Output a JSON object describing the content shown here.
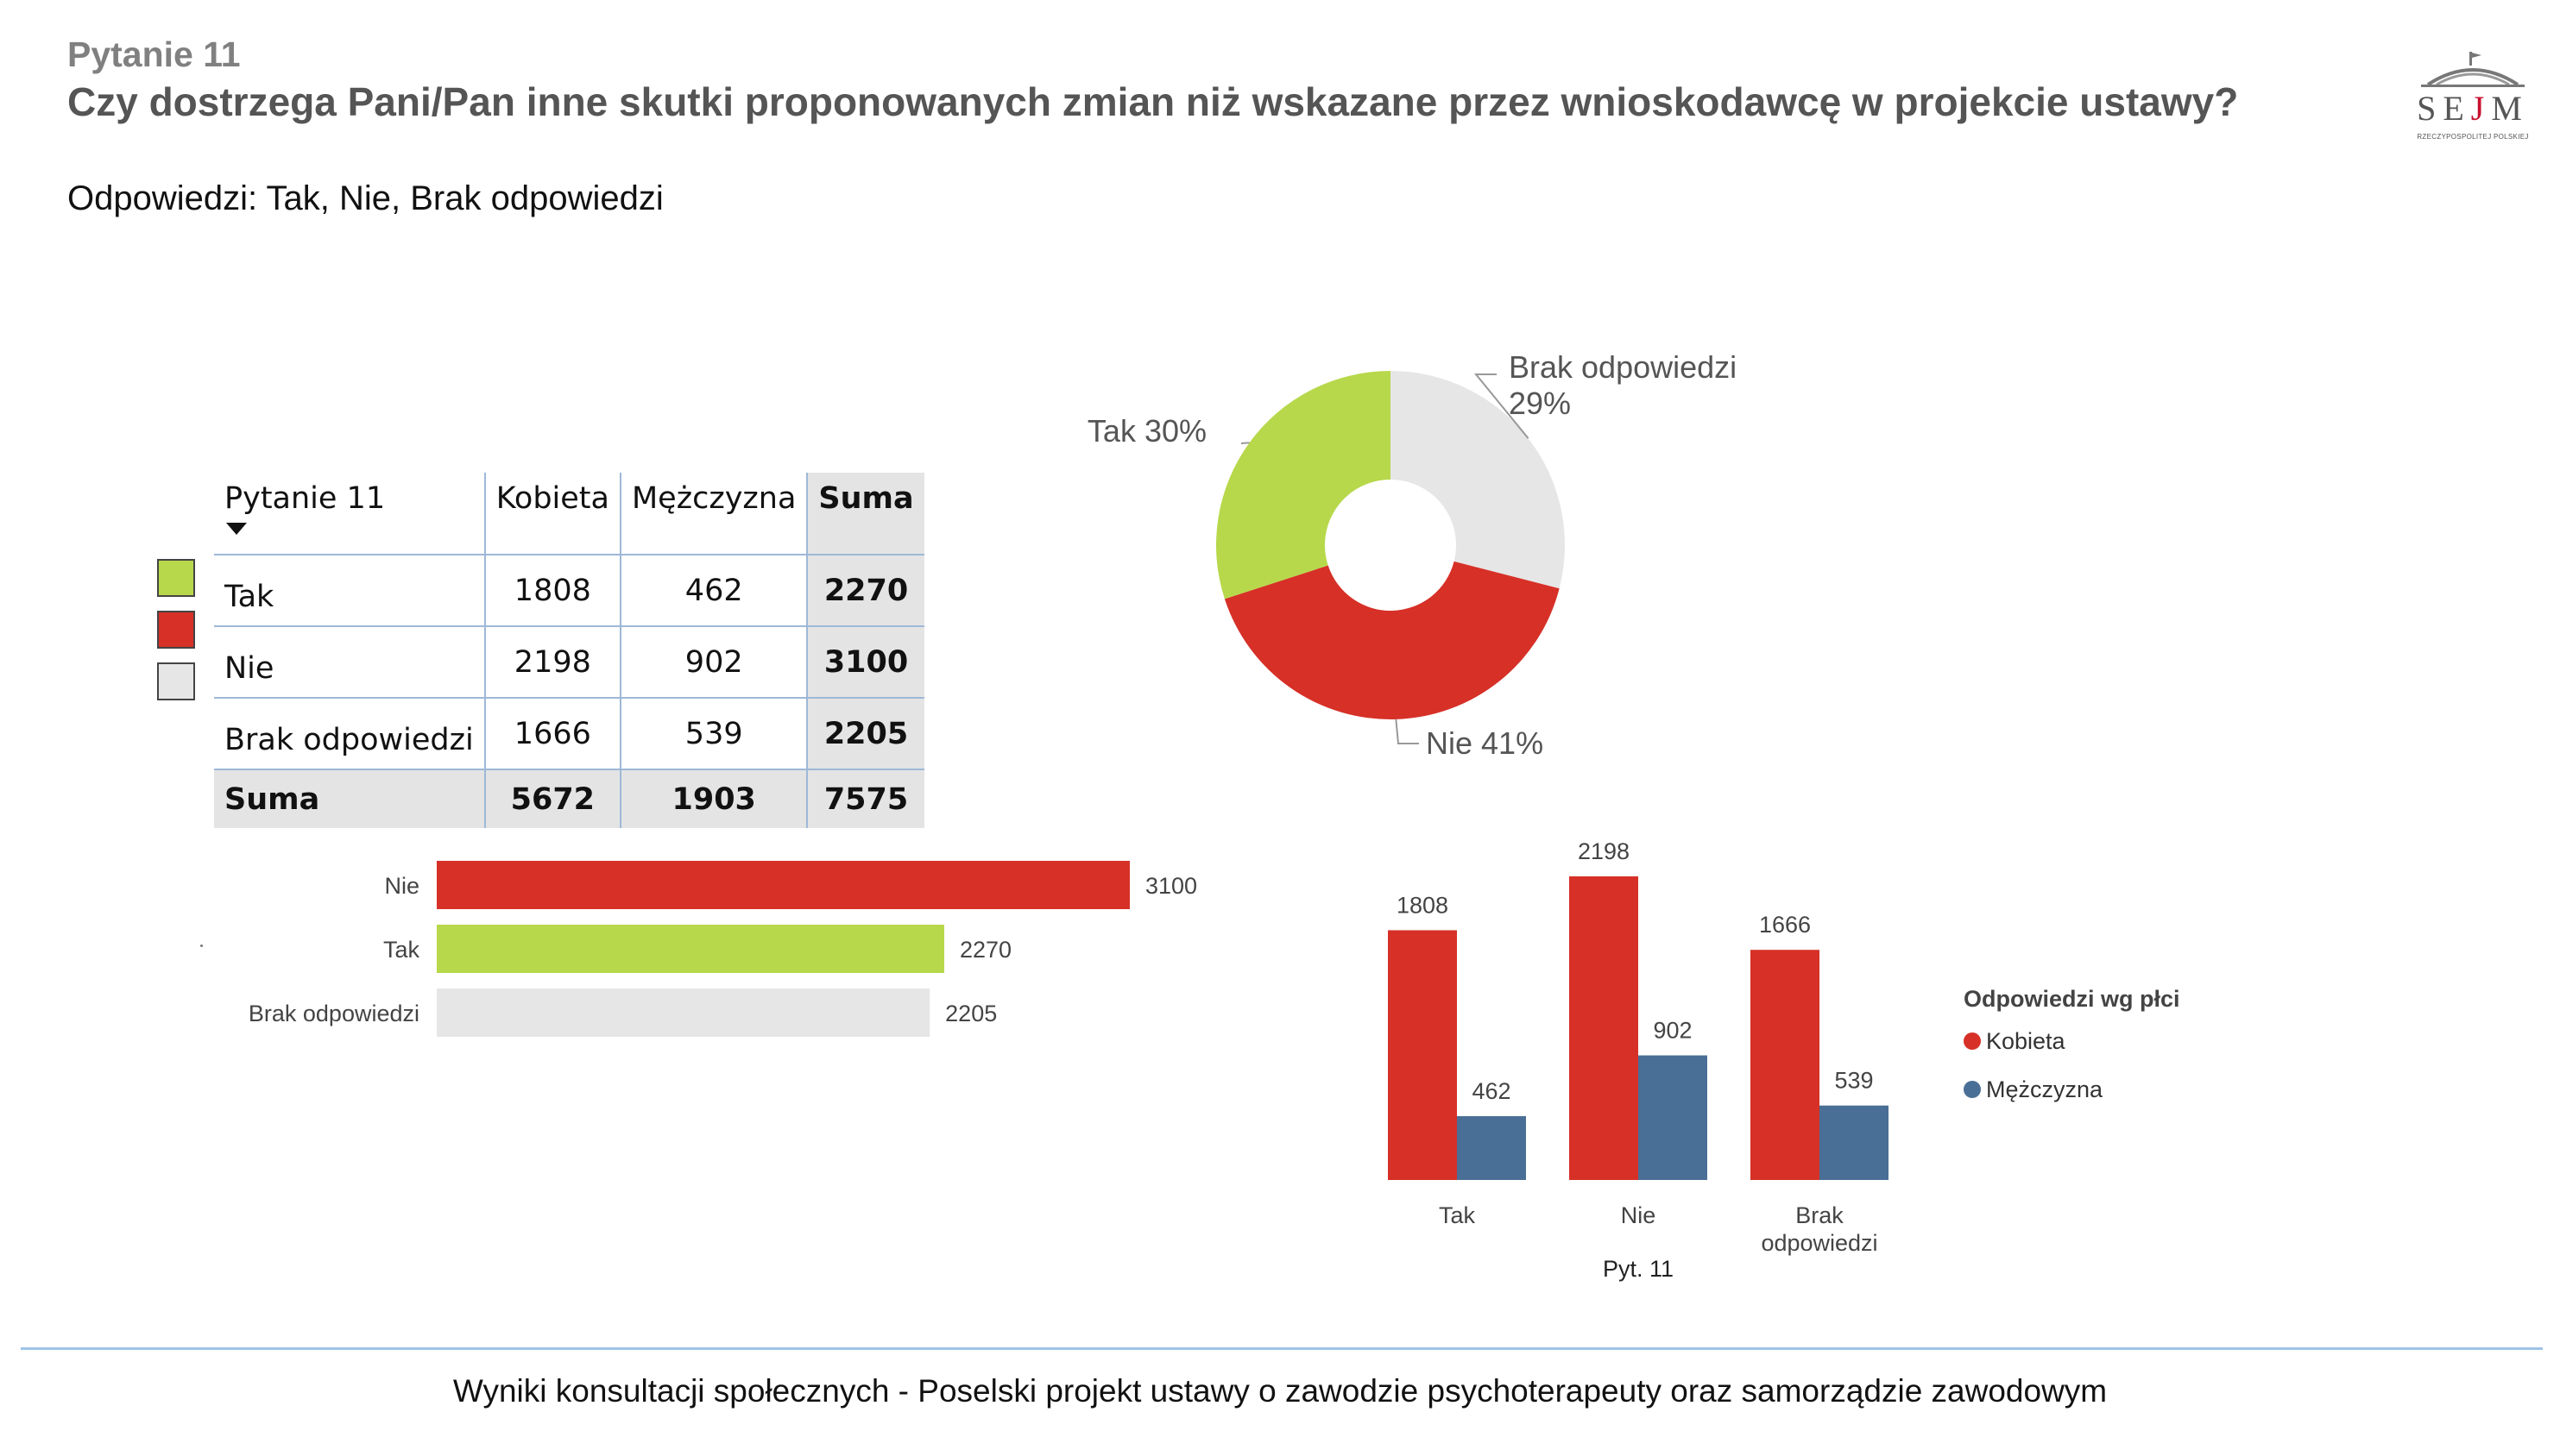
{
  "header": {
    "label": "Pytanie 11",
    "title": "Czy dostrzega Pani/Pan inne skutki proponowanych zmian niż wskazane przez wnioskodawcę w projekcie ustawy?",
    "subtitle": "Odpowiedzi: Tak, Nie, Brak odpowiedzi"
  },
  "logo": {
    "word_left": "SE",
    "word_mark": "J",
    "word_right": "M",
    "subtext": "RZECZYPOSPOLITEJ POLSKIEJ"
  },
  "table": {
    "headers": [
      "Pytanie 11",
      "Kobieta",
      "Mężczyzna",
      "Suma"
    ],
    "rows": [
      {
        "label": "Tak",
        "kobieta": "1808",
        "mezczyzna": "462",
        "suma": "2270",
        "color": "#b7d84b"
      },
      {
        "label": "Nie",
        "kobieta": "2198",
        "mezczyzna": "902",
        "suma": "3100",
        "color": "#d63027"
      },
      {
        "label": "Brak odpowiedzi",
        "kobieta": "1666",
        "mezczyzna": "539",
        "suma": "2205",
        "color": "#e6e6e6"
      }
    ],
    "total": {
      "label": "Suma",
      "kobieta": "5672",
      "mezczyzna": "1903",
      "suma": "7575"
    }
  },
  "chart_data": [
    {
      "type": "pie",
      "variant": "donut",
      "slices": [
        {
          "label": "Brak odpowiedzi",
          "percent_label": "29%",
          "value": 29,
          "color": "#e6e6e6"
        },
        {
          "label": "Nie",
          "percent_label": "41%",
          "value": 41,
          "color": "#d63027"
        },
        {
          "label": "Tak",
          "percent_label": "30%",
          "value": 30,
          "color": "#b7d84b"
        }
      ]
    },
    {
      "type": "bar",
      "orientation": "horizontal",
      "categories": [
        "Nie",
        "Tak",
        "Brak odpowiedzi"
      ],
      "values": [
        3100,
        2270,
        2205
      ],
      "colors": [
        "#d63027",
        "#b7d84b",
        "#e6e6e6"
      ],
      "xlim": [
        0,
        3100
      ],
      "grid": false
    },
    {
      "type": "bar",
      "orientation": "vertical",
      "categories": [
        "Tak",
        "Nie",
        "Brak odpowiedzi"
      ],
      "series": [
        {
          "name": "Kobieta",
          "values": [
            1808,
            2198,
            1666
          ],
          "color": "#d63027"
        },
        {
          "name": "Mężczyzna",
          "values": [
            462,
            902,
            539
          ],
          "color": "#4a6f96"
        }
      ],
      "xlabel": "Pyt. 11",
      "legend_title": "Odpowiedzi wg płci",
      "legend_position": "right",
      "ylim": [
        0,
        2198
      ],
      "grid": false
    }
  ],
  "footer": "Wyniki konsultacji społecznych - Poselski projekt ustawy o zawodzie psychoterapeuty oraz samorządzie zawodowym"
}
